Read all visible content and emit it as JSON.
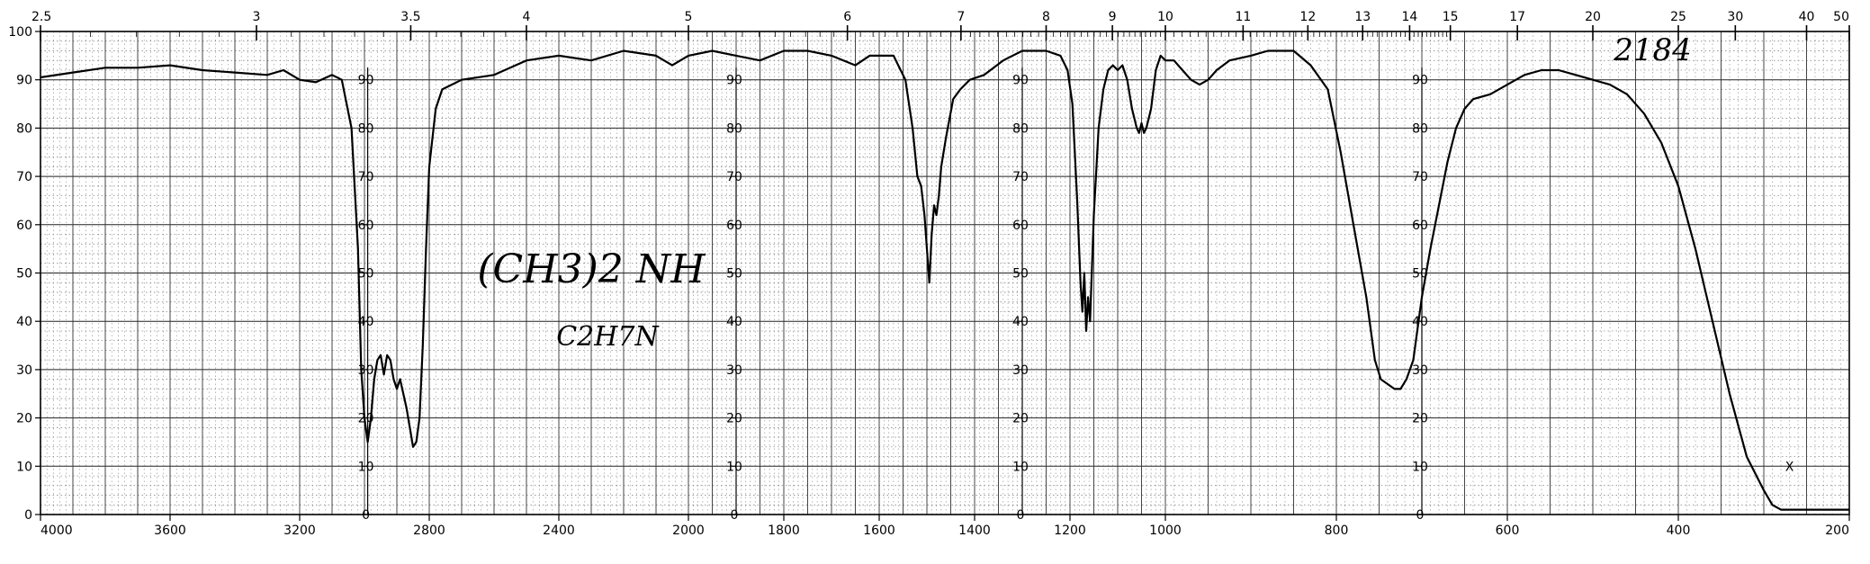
{
  "chart_data": {
    "type": "line",
    "title": "",
    "xlabel": "",
    "ylabel": "",
    "x_axis": {
      "units": "cm-1",
      "range": [
        4000,
        200
      ],
      "ticks": [
        "4000",
        "3600",
        "3200",
        "2800",
        "2400",
        "2000",
        "1800",
        "1600",
        "1400",
        "1200",
        "1000",
        "800",
        "600",
        "400",
        "200"
      ]
    },
    "top_axis": {
      "units": "microns",
      "ticks": [
        "2.5",
        "3",
        "3.5",
        "4",
        "5",
        "6",
        "7",
        "8",
        "9",
        "10",
        "11",
        "12",
        "13",
        "14",
        "15",
        "17",
        "20",
        "25",
        "30",
        "40",
        "50"
      ]
    },
    "y_axis": {
      "range": [
        0,
        100
      ],
      "ticks": [
        "0",
        "10",
        "20",
        "30",
        "40",
        "50",
        "60",
        "70",
        "80",
        "90",
        "100"
      ],
      "inner_scale_ticks": [
        "0",
        "10",
        "20",
        "30",
        "40",
        "50",
        "60",
        "70",
        "80",
        "90"
      ]
    },
    "grid": true,
    "annotations": {
      "sample_number": "2184",
      "formula_structural": "(CH3)2 NH",
      "formula_molecular": "C2H7N",
      "marker": "X"
    },
    "series": [
      {
        "points": [
          [
            4000,
            90.5
          ],
          [
            3900,
            91.5
          ],
          [
            3800,
            92.5
          ],
          [
            3700,
            92.5
          ],
          [
            3600,
            93
          ],
          [
            3500,
            92
          ],
          [
            3400,
            91.5
          ],
          [
            3300,
            91
          ],
          [
            3250,
            92
          ],
          [
            3200,
            90
          ],
          [
            3150,
            89.5
          ],
          [
            3100,
            91
          ],
          [
            3070,
            90
          ],
          [
            3040,
            80
          ],
          [
            3020,
            55
          ],
          [
            3010,
            30
          ],
          [
            3000,
            20
          ],
          [
            2990,
            15
          ],
          [
            2980,
            20
          ],
          [
            2970,
            28
          ],
          [
            2960,
            32
          ],
          [
            2950,
            33
          ],
          [
            2940,
            29
          ],
          [
            2930,
            33
          ],
          [
            2920,
            32
          ],
          [
            2910,
            28
          ],
          [
            2900,
            26
          ],
          [
            2890,
            28
          ],
          [
            2880,
            25
          ],
          [
            2870,
            22
          ],
          [
            2860,
            18
          ],
          [
            2850,
            14
          ],
          [
            2840,
            15
          ],
          [
            2830,
            20
          ],
          [
            2820,
            35
          ],
          [
            2810,
            55
          ],
          [
            2800,
            72
          ],
          [
            2780,
            84
          ],
          [
            2760,
            88
          ],
          [
            2700,
            90
          ],
          [
            2600,
            91
          ],
          [
            2500,
            94
          ],
          [
            2400,
            95
          ],
          [
            2300,
            94
          ],
          [
            2200,
            96
          ],
          [
            2100,
            95
          ],
          [
            2050,
            93
          ],
          [
            2000,
            95
          ],
          [
            1950,
            96
          ],
          [
            1900,
            95
          ],
          [
            1850,
            94
          ],
          [
            1800,
            96
          ],
          [
            1750,
            96
          ],
          [
            1700,
            95
          ],
          [
            1650,
            93
          ],
          [
            1620,
            95
          ],
          [
            1570,
            95
          ],
          [
            1545,
            90
          ],
          [
            1530,
            80
          ],
          [
            1520,
            70
          ],
          [
            1512,
            68
          ],
          [
            1505,
            62
          ],
          [
            1500,
            55
          ],
          [
            1495,
            48
          ],
          [
            1490,
            58
          ],
          [
            1485,
            64
          ],
          [
            1480,
            62
          ],
          [
            1475,
            66
          ],
          [
            1470,
            72
          ],
          [
            1460,
            78
          ],
          [
            1445,
            86
          ],
          [
            1430,
            88
          ],
          [
            1410,
            90
          ],
          [
            1380,
            91
          ],
          [
            1340,
            94
          ],
          [
            1300,
            96
          ],
          [
            1250,
            96
          ],
          [
            1220,
            95
          ],
          [
            1205,
            92
          ],
          [
            1195,
            85
          ],
          [
            1185,
            65
          ],
          [
            1178,
            48
          ],
          [
            1174,
            42
          ],
          [
            1170,
            50
          ],
          [
            1166,
            38
          ],
          [
            1162,
            45
          ],
          [
            1158,
            40
          ],
          [
            1150,
            62
          ],
          [
            1140,
            80
          ],
          [
            1130,
            88
          ],
          [
            1120,
            92
          ],
          [
            1110,
            93
          ],
          [
            1100,
            92
          ],
          [
            1090,
            93
          ],
          [
            1080,
            90
          ],
          [
            1070,
            84
          ],
          [
            1060,
            80
          ],
          [
            1055,
            79
          ],
          [
            1050,
            81
          ],
          [
            1045,
            79
          ],
          [
            1040,
            80
          ],
          [
            1035,
            82
          ],
          [
            1030,
            84
          ],
          [
            1020,
            92
          ],
          [
            1010,
            95
          ],
          [
            1000,
            94
          ],
          [
            990,
            94
          ],
          [
            980,
            92
          ],
          [
            970,
            90
          ],
          [
            960,
            89
          ],
          [
            950,
            90
          ],
          [
            940,
            92
          ],
          [
            925,
            94
          ],
          [
            900,
            95
          ],
          [
            880,
            96
          ],
          [
            850,
            96
          ],
          [
            830,
            93
          ],
          [
            810,
            88
          ],
          [
            795,
            75
          ],
          [
            780,
            60
          ],
          [
            765,
            45
          ],
          [
            755,
            32
          ],
          [
            748,
            28
          ],
          [
            740,
            27
          ],
          [
            732,
            26
          ],
          [
            725,
            26
          ],
          [
            718,
            28
          ],
          [
            710,
            32
          ],
          [
            700,
            45
          ],
          [
            690,
            55
          ],
          [
            680,
            64
          ],
          [
            670,
            73
          ],
          [
            660,
            80
          ],
          [
            650,
            84
          ],
          [
            640,
            86
          ],
          [
            620,
            87
          ],
          [
            600,
            89
          ],
          [
            580,
            91
          ],
          [
            560,
            92
          ],
          [
            540,
            92
          ],
          [
            520,
            91
          ],
          [
            500,
            90
          ],
          [
            480,
            89
          ],
          [
            460,
            87
          ],
          [
            440,
            83
          ],
          [
            420,
            77
          ],
          [
            400,
            68
          ],
          [
            380,
            55
          ],
          [
            360,
            40
          ],
          [
            340,
            25
          ],
          [
            320,
            12
          ],
          [
            300,
            5
          ],
          [
            290,
            2
          ],
          [
            280,
            1
          ],
          [
            270,
            1
          ],
          [
            260,
            1
          ],
          [
            250,
            1
          ],
          [
            240,
            1
          ],
          [
            230,
            1
          ],
          [
            220,
            1
          ],
          [
            210,
            1
          ],
          [
            200,
            1
          ]
        ]
      }
    ]
  }
}
